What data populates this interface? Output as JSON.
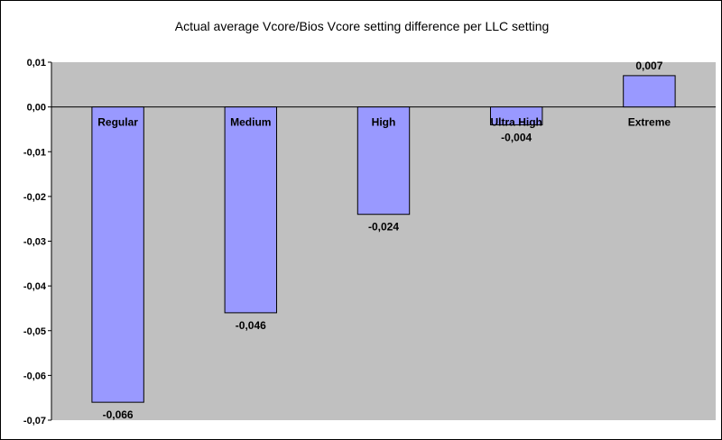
{
  "chart_data": {
    "type": "bar",
    "title": "Actual average Vcore/Bios Vcore setting difference per LLC setting",
    "xlabel": "",
    "ylabel": "",
    "categories": [
      "Regular",
      "Medium",
      "High",
      "Ultra High",
      "Extreme"
    ],
    "values": [
      -0.066,
      -0.046,
      -0.024,
      -0.004,
      0.007
    ],
    "data_labels": [
      "-0,066",
      "-0,046",
      "-0,024",
      "-0,004",
      "0,007"
    ],
    "ylim": [
      -0.07,
      0.01
    ],
    "yticks": [
      0.01,
      0.0,
      -0.01,
      -0.02,
      -0.03,
      -0.04,
      -0.05,
      -0.06,
      -0.07
    ],
    "ytick_labels": [
      "0,01",
      "0,00",
      "-0,01",
      "-0,02",
      "-0,03",
      "-0,04",
      "-0,05",
      "-0,06",
      "-0,07"
    ],
    "grid": false,
    "legend": "none",
    "colors": {
      "bar": "#9999ff",
      "bar_border": "#000000",
      "plot_background": "#c0c0c0",
      "page_background": "#ffffff"
    }
  }
}
